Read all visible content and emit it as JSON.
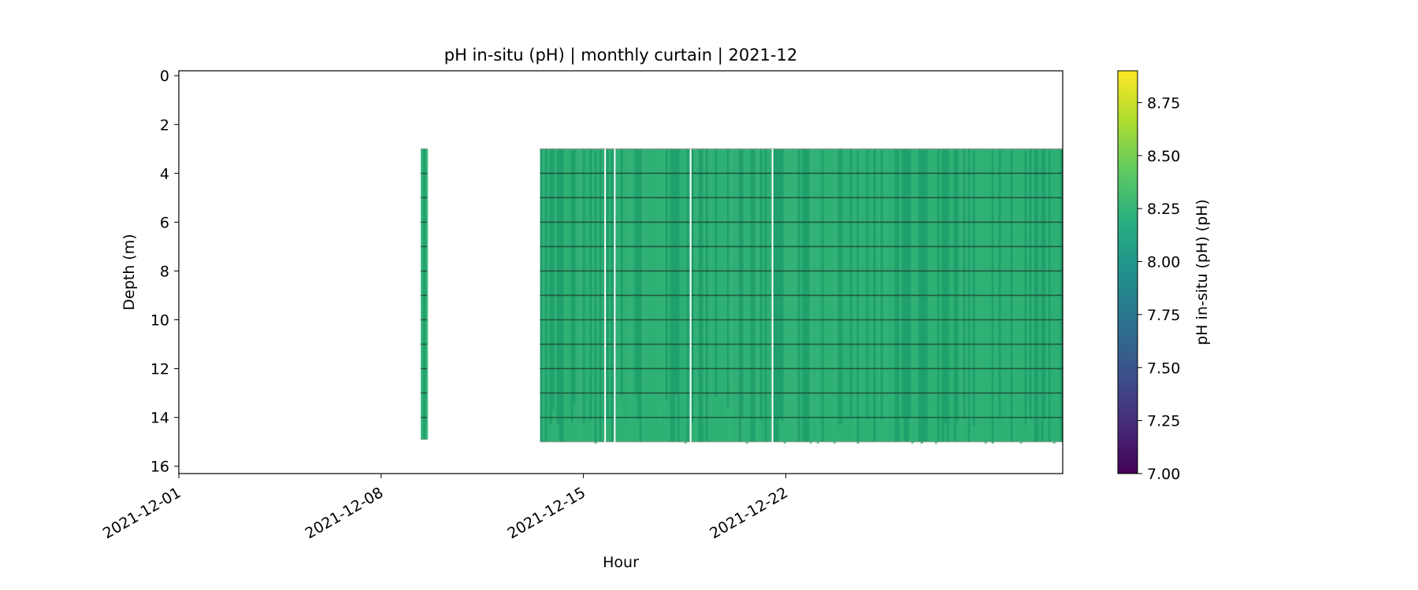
{
  "chart_data": {
    "type": "heatmap",
    "title": "pH in-situ (pH) | monthly curtain | 2021-12",
    "xlabel": "Hour",
    "ylabel": "Depth (m)",
    "x_axis": {
      "type": "date",
      "range": [
        "2021-12-01",
        "2021-12-31T14:00"
      ],
      "ticks": [
        "2021-12-01",
        "2021-12-08",
        "2021-12-15",
        "2021-12-22"
      ]
    },
    "y_axis": {
      "range": [
        16.3,
        -0.2
      ],
      "inverted": true,
      "ticks": [
        0,
        2,
        4,
        6,
        8,
        10,
        12,
        14,
        16
      ]
    },
    "colorbar": {
      "label": "pH in-situ (pH) (pH)",
      "colormap": "viridis",
      "range": [
        7.0,
        8.9
      ],
      "ticks": [
        "7.00",
        "7.25",
        "7.50",
        "7.75",
        "8.00",
        "8.25",
        "8.50",
        "8.75"
      ]
    },
    "sensor_depths_m": [
      4,
      5,
      6,
      7,
      8,
      9,
      10,
      11,
      12,
      13,
      14
    ],
    "typical_value": 8.22,
    "data_blocks": [
      {
        "start": "2021-12-09T09:00",
        "end": "2021-12-09T14:00",
        "top_depth": 3.0,
        "bottom_depth": 14.9,
        "value": 8.2
      },
      {
        "start": "2021-12-13T12:00",
        "end": "2021-12-31T14:00",
        "top_depth": 3.0,
        "bottom_depth": 15.0,
        "value": 8.22
      }
    ],
    "gaps": [
      "2021-12-15T18:00",
      "2021-12-16T02:00",
      "2021-12-18T17:00",
      "2021-12-21T13:00"
    ]
  },
  "colors": {
    "fill_main": "#2fb074",
    "fill_dark": "#1f9e6a",
    "sensor_line": "#1c4d3a",
    "axes": "#000000"
  }
}
